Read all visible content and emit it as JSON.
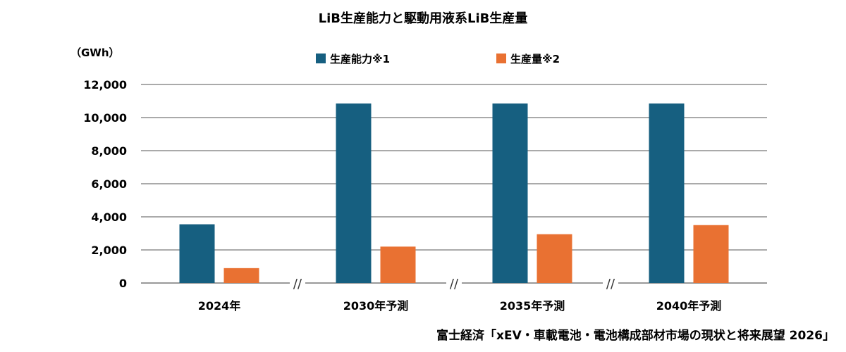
{
  "chart_data": {
    "type": "bar",
    "title": "LiB生産能力と駆動用液系LiB生産量",
    "unit_label": "（GWh）",
    "categories": [
      "2024年",
      "2030年予測",
      "2035年予測",
      "2040年予測"
    ],
    "series": [
      {
        "name": "生産能力※1",
        "color": "#165f80",
        "values": [
          3550,
          10850,
          10850,
          10850
        ]
      },
      {
        "name": "生産量※2",
        "color": "#e97132",
        "values": [
          900,
          2200,
          2950,
          3500
        ]
      }
    ],
    "yticks": [
      "0",
      "2,000",
      "4,000",
      "6,000",
      "8,000",
      "10,000",
      "12,000"
    ],
    "ylim": [
      0,
      12000
    ],
    "grid": true,
    "legend": "top-center",
    "axis_break_mark": "//"
  },
  "source": "富士経済「xEV・車載電池・電池構成部材市場の現状と将来展望 2026」"
}
